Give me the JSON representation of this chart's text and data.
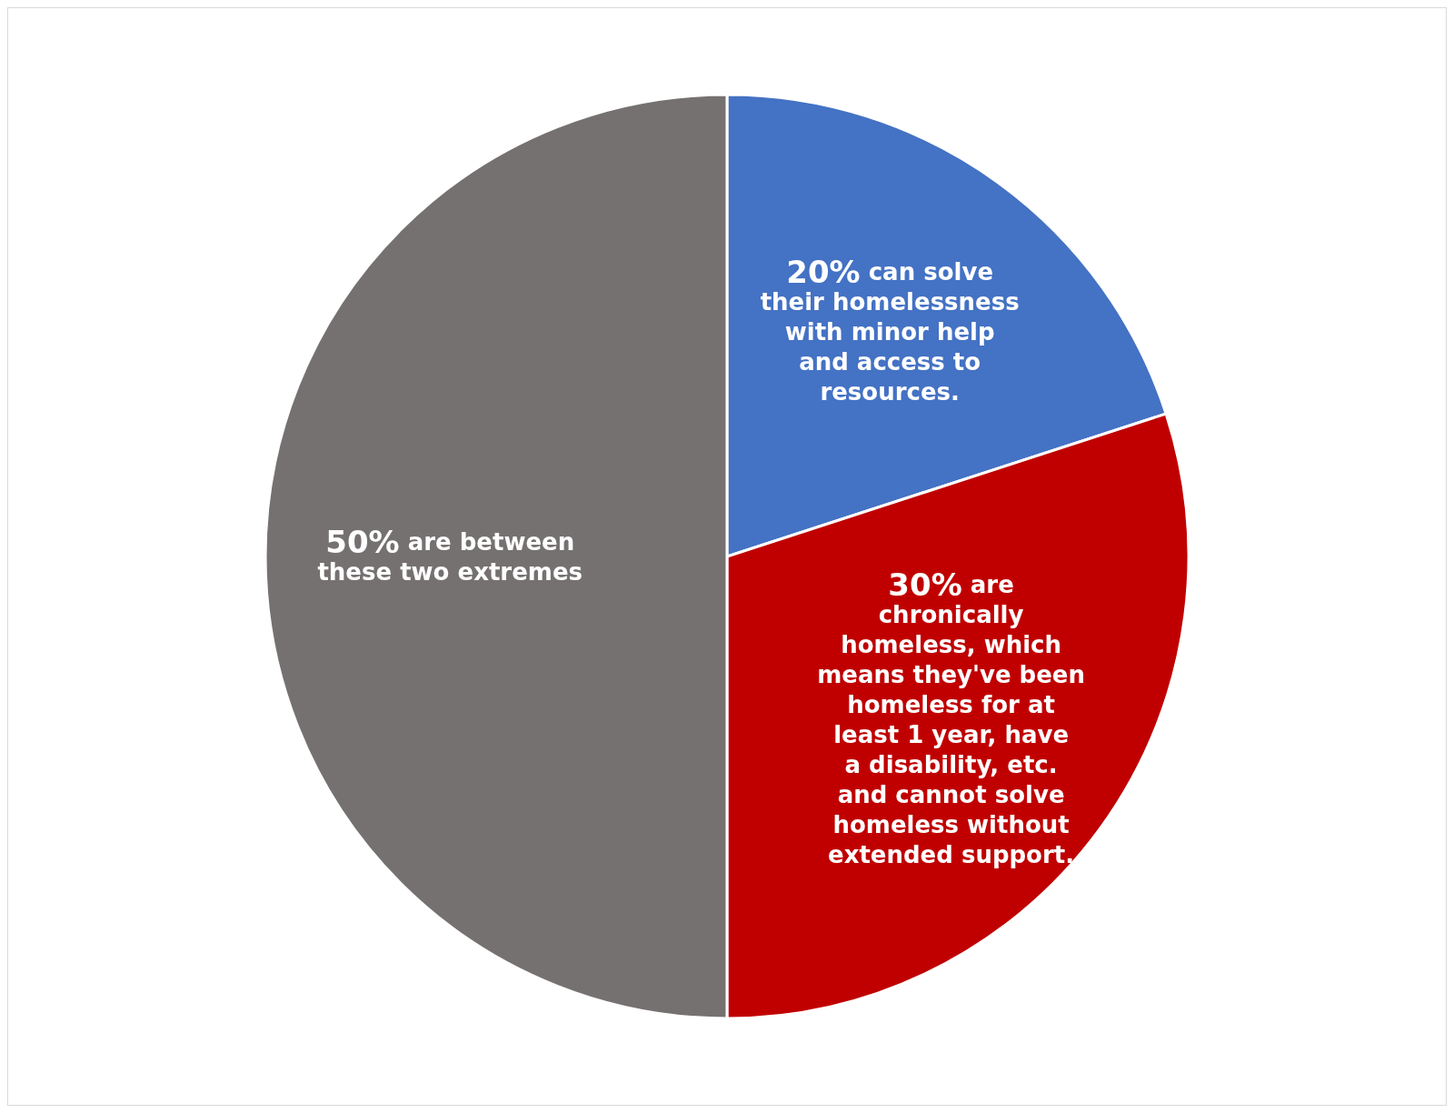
{
  "chart_data": {
    "type": "pie",
    "categories": [
      "can solve their homelessness with minor help and access to resources.",
      "are chronically homeless, which means they've been homeless for at least 1 year, have a disability, etc. and cannot solve homeless without extended support.",
      "are between these two extremes"
    ],
    "values": [
      20,
      30,
      50
    ],
    "colors": [
      "#4472c4",
      "#c00000",
      "#767171"
    ],
    "value_labels": [
      "20%",
      "30%",
      "50%"
    ]
  }
}
